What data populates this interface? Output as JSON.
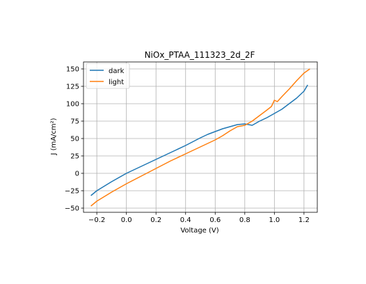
{
  "chart_data": {
    "type": "line",
    "title": "NiOx_PTAA_111323_2d_2F",
    "xlabel": "Voltage (V)",
    "ylabel": "J (mA/cm²)",
    "xlim": [
      -0.29,
      1.29
    ],
    "ylim": [
      -56,
      160
    ],
    "x_ticks": [
      -0.2,
      0.0,
      0.2,
      0.4,
      0.6,
      0.8,
      1.0,
      1.2
    ],
    "x_tick_labels": [
      "−0.2",
      "0.0",
      "0.2",
      "0.4",
      "0.6",
      "0.8",
      "1.0",
      "1.2"
    ],
    "y_ticks": [
      -50,
      -25,
      0,
      25,
      50,
      75,
      100,
      125,
      150
    ],
    "y_tick_labels": [
      "−50",
      "−25",
      "0",
      "25",
      "50",
      "75",
      "100",
      "125",
      "150"
    ],
    "grid": true,
    "legend_position": "upper-left",
    "colors": {
      "dark": "#1f77b4",
      "light": "#ff7f0e"
    },
    "series": [
      {
        "name": "dark",
        "x": [
          -0.24,
          -0.2,
          -0.1,
          0.0,
          0.1,
          0.2,
          0.3,
          0.4,
          0.5,
          0.55,
          0.6,
          0.65,
          0.7,
          0.75,
          0.8,
          0.85,
          0.9,
          0.95,
          1.0,
          1.05,
          1.1,
          1.15,
          1.2,
          1.225
        ],
        "y": [
          -32,
          -25,
          -12,
          0,
          10,
          20,
          30,
          40,
          51,
          56,
          60,
          64,
          67,
          70,
          71,
          69,
          75,
          80,
          86,
          92,
          100,
          108,
          118,
          127
        ]
      },
      {
        "name": "light",
        "x": [
          -0.24,
          -0.2,
          -0.1,
          0.0,
          0.1,
          0.2,
          0.3,
          0.4,
          0.5,
          0.55,
          0.6,
          0.65,
          0.7,
          0.75,
          0.8,
          0.85,
          0.9,
          0.95,
          0.98,
          1.0,
          1.02,
          1.05,
          1.1,
          1.15,
          1.2,
          1.24
        ],
        "y": [
          -47,
          -40,
          -27,
          -15,
          -4,
          7,
          18,
          28,
          38,
          43,
          48,
          54,
          61,
          67,
          69,
          75,
          83,
          91,
          96,
          105,
          103,
          110,
          121,
          133,
          144,
          150
        ]
      }
    ]
  }
}
